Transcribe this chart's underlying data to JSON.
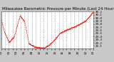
{
  "title": "Milwaukee Barometric Pressure per Minute (Last 24 Hours)",
  "bg_color": "#c8c8c8",
  "plot_bg_color": "#ffffff",
  "line_color": "#ff0000",
  "grid_color": "#888888",
  "ylim": [
    29.02,
    30.22
  ],
  "yticks": [
    29.1,
    29.2,
    29.3,
    29.4,
    29.5,
    29.6,
    29.7,
    29.8,
    29.9,
    30.0,
    30.1,
    30.2
  ],
  "title_fontsize": 4.0,
  "tick_fontsize": 3.0,
  "num_points": 1440,
  "control_points_x": [
    0,
    50,
    120,
    200,
    290,
    360,
    430,
    520,
    600,
    670,
    740,
    820,
    920,
    1020,
    1120,
    1220,
    1320,
    1400,
    1439
  ],
  "control_points_y": [
    29.95,
    29.55,
    29.22,
    29.4,
    30.08,
    29.9,
    29.18,
    29.08,
    29.04,
    29.04,
    29.12,
    29.28,
    29.52,
    29.62,
    29.7,
    29.8,
    29.92,
    30.12,
    30.22
  ],
  "noise_std": 0.012,
  "random_seed": 7
}
